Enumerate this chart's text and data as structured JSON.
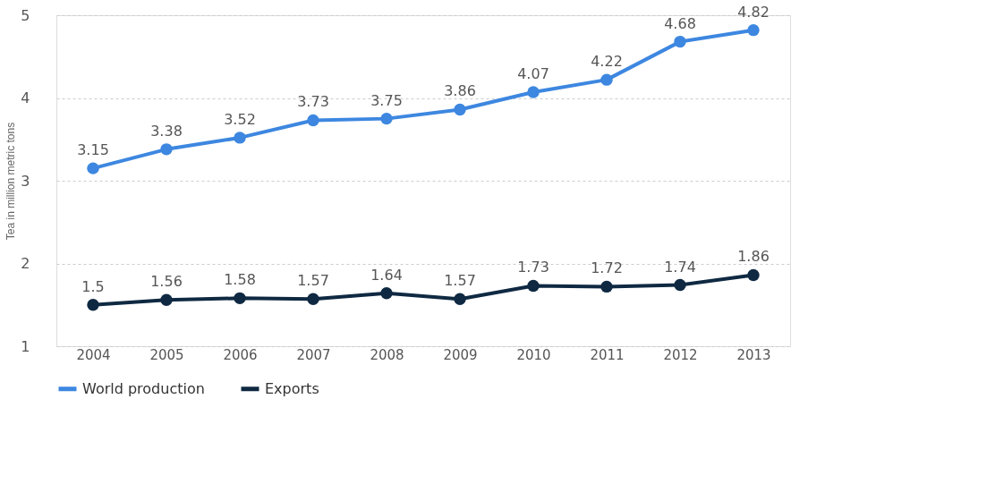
{
  "chart_data": {
    "type": "line",
    "ylabel": "Tea in million metric tons",
    "categories": [
      "2004",
      "2005",
      "2006",
      "2007",
      "2008",
      "2009",
      "2010",
      "2011",
      "2012",
      "2013"
    ],
    "series": [
      {
        "name": "World production",
        "color": "#3d87e0",
        "values": [
          3.15,
          3.38,
          3.52,
          3.73,
          3.75,
          3.86,
          4.07,
          4.22,
          4.68,
          4.82
        ]
      },
      {
        "name": "Exports",
        "color": "#0f2942",
        "values": [
          1.5,
          1.56,
          1.58,
          1.57,
          1.64,
          1.57,
          1.73,
          1.72,
          1.74,
          1.86
        ]
      }
    ],
    "ylim": [
      1,
      5
    ],
    "yticks": [
      1,
      2,
      3,
      4,
      5
    ],
    "grid": "y",
    "legend": "bottom",
    "marker": "circle",
    "line_style": "solid",
    "data_labels": true
  }
}
